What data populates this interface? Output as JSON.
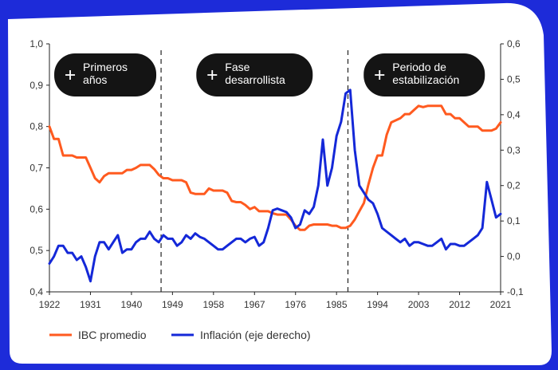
{
  "chart_data": {
    "type": "line",
    "x_ticks": [
      1922,
      1931,
      1940,
      1949,
      1958,
      1967,
      1976,
      1985,
      1994,
      2003,
      2012,
      2021
    ],
    "xlim": [
      1922,
      2021
    ],
    "y_left_ticks": [
      "0,4",
      "0,5",
      "0,6",
      "0,7",
      "0,8",
      "0,9",
      "1,0"
    ],
    "y_left_lim": [
      0.4,
      1.0
    ],
    "y_right_ticks": [
      "-0,1",
      "0,0",
      "0,1",
      "0,2",
      "0,3",
      "0,4",
      "0,5",
      "0,6"
    ],
    "y_right_lim": [
      -0.1,
      0.6
    ],
    "grid": false,
    "legend_placement": "bottom-left",
    "period_dividers": [
      1946.5,
      1987.5
    ],
    "periods": [
      {
        "label": "Primeros\naños",
        "icon": "plus-icon"
      },
      {
        "label": "Fase\ndesarrollista",
        "icon": "plus-icon"
      },
      {
        "label": "Periodo de\nestabilización",
        "icon": "plus-icon"
      }
    ],
    "series": [
      {
        "name": "IBC promedio",
        "axis": "left",
        "color": "#ff5a1f",
        "x": [
          1922,
          1923,
          1924,
          1925,
          1926,
          1927,
          1928,
          1929,
          1930,
          1931,
          1932,
          1933,
          1934,
          1935,
          1936,
          1937,
          1938,
          1939,
          1940,
          1941,
          1942,
          1943,
          1944,
          1945,
          1946,
          1947,
          1948,
          1949,
          1950,
          1951,
          1952,
          1953,
          1954,
          1955,
          1956,
          1957,
          1958,
          1959,
          1960,
          1961,
          1962,
          1963,
          1964,
          1965,
          1966,
          1967,
          1968,
          1969,
          1970,
          1971,
          1972,
          1973,
          1974,
          1975,
          1976,
          1977,
          1978,
          1979,
          1980,
          1981,
          1982,
          1983,
          1984,
          1985,
          1986,
          1987,
          1988,
          1989,
          1990,
          1991,
          1992,
          1993,
          1994,
          1995,
          1996,
          1997,
          1998,
          1999,
          2000,
          2001,
          2002,
          2003,
          2004,
          2005,
          2006,
          2007,
          2008,
          2009,
          2010,
          2011,
          2012,
          2013,
          2014,
          2015,
          2016,
          2017,
          2018,
          2019,
          2020,
          2021
        ],
        "values": [
          0.8,
          0.77,
          0.77,
          0.73,
          0.73,
          0.73,
          0.725,
          0.725,
          0.725,
          0.7,
          0.675,
          0.665,
          0.68,
          0.687,
          0.687,
          0.687,
          0.687,
          0.695,
          0.695,
          0.7,
          0.707,
          0.707,
          0.707,
          0.697,
          0.683,
          0.675,
          0.675,
          0.67,
          0.67,
          0.67,
          0.665,
          0.64,
          0.637,
          0.637,
          0.637,
          0.65,
          0.645,
          0.645,
          0.645,
          0.64,
          0.62,
          0.617,
          0.617,
          0.61,
          0.6,
          0.605,
          0.595,
          0.595,
          0.595,
          0.59,
          0.587,
          0.587,
          0.587,
          0.575,
          0.56,
          0.55,
          0.55,
          0.56,
          0.563,
          0.563,
          0.563,
          0.563,
          0.56,
          0.56,
          0.555,
          0.555,
          0.56,
          0.575,
          0.595,
          0.615,
          0.66,
          0.7,
          0.73,
          0.73,
          0.78,
          0.81,
          0.815,
          0.82,
          0.83,
          0.83,
          0.84,
          0.85,
          0.847,
          0.85,
          0.85,
          0.85,
          0.85,
          0.83,
          0.83,
          0.82,
          0.82,
          0.81,
          0.8,
          0.8,
          0.8,
          0.79,
          0.79,
          0.79,
          0.795,
          0.81
        ]
      },
      {
        "name": "Inflación (eje derecho)",
        "axis": "right",
        "color": "#1428d8",
        "x": [
          1922,
          1923,
          1924,
          1925,
          1926,
          1927,
          1928,
          1929,
          1930,
          1931,
          1932,
          1933,
          1934,
          1935,
          1936,
          1937,
          1938,
          1939,
          1940,
          1941,
          1942,
          1943,
          1944,
          1945,
          1946,
          1947,
          1948,
          1949,
          1950,
          1951,
          1952,
          1953,
          1954,
          1955,
          1956,
          1957,
          1958,
          1959,
          1960,
          1961,
          1962,
          1963,
          1964,
          1965,
          1966,
          1967,
          1968,
          1969,
          1970,
          1971,
          1972,
          1973,
          1974,
          1975,
          1976,
          1977,
          1978,
          1979,
          1980,
          1981,
          1982,
          1983,
          1984,
          1985,
          1986,
          1987,
          1988,
          1989,
          1990,
          1991,
          1992,
          1993,
          1994,
          1995,
          1996,
          1997,
          1998,
          1999,
          2000,
          2001,
          2002,
          2003,
          2004,
          2005,
          2006,
          2007,
          2008,
          2009,
          2010,
          2011,
          2012,
          2013,
          2014,
          2015,
          2016,
          2017,
          2018,
          2019,
          2020,
          2021
        ],
        "values": [
          -0.02,
          0.0,
          0.03,
          0.03,
          0.01,
          0.01,
          -0.01,
          0.0,
          -0.03,
          -0.07,
          0.0,
          0.04,
          0.04,
          0.02,
          0.04,
          0.06,
          0.01,
          0.02,
          0.02,
          0.04,
          0.05,
          0.05,
          0.07,
          0.05,
          0.04,
          0.06,
          0.05,
          0.05,
          0.03,
          0.04,
          0.06,
          0.05,
          0.065,
          0.055,
          0.05,
          0.04,
          0.03,
          0.02,
          0.02,
          0.03,
          0.04,
          0.05,
          0.05,
          0.04,
          0.05,
          0.055,
          0.03,
          0.04,
          0.08,
          0.13,
          0.135,
          0.13,
          0.125,
          0.11,
          0.08,
          0.09,
          0.13,
          0.12,
          0.14,
          0.2,
          0.33,
          0.2,
          0.25,
          0.34,
          0.38,
          0.46,
          0.47,
          0.3,
          0.2,
          0.18,
          0.16,
          0.15,
          0.12,
          0.08,
          0.07,
          0.06,
          0.05,
          0.04,
          0.05,
          0.03,
          0.04,
          0.04,
          0.035,
          0.03,
          0.03,
          0.04,
          0.05,
          0.02,
          0.035,
          0.035,
          0.03,
          0.03,
          0.04,
          0.05,
          0.06,
          0.08,
          0.21,
          0.16,
          0.11,
          0.12
        ]
      }
    ]
  }
}
